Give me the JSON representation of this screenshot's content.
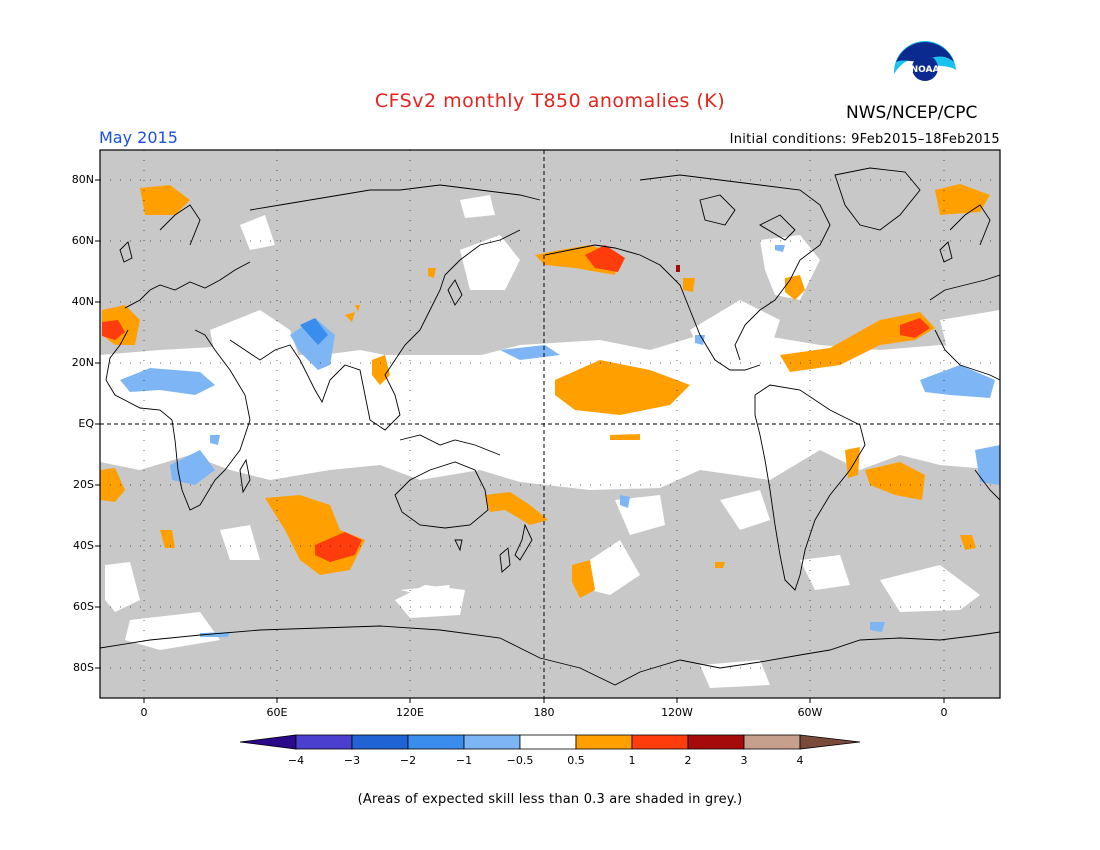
{
  "header": {
    "title": "CFSv2 monthly T850 anomalies (K)",
    "agency": "NWS/NCEP/CPC",
    "period": "May 2015",
    "initial_conditions": "Initial conditions: 9Feb2015–18Feb2015",
    "logo_text": "NOAA"
  },
  "map": {
    "lat_labels": [
      "80N",
      "60N",
      "40N",
      "20N",
      "EQ",
      "20S",
      "40S",
      "60S",
      "80S"
    ],
    "lon_labels": [
      "0",
      "60E",
      "120E",
      "180",
      "120W",
      "60W",
      "0"
    ],
    "projection": "cylindrical equidistant, centered on 180",
    "grey_color": "#c8c8c8"
  },
  "colorbar": {
    "tick_labels": [
      "−4",
      "−3",
      "−2",
      "−1",
      "−0.5",
      "0.5",
      "1",
      "2",
      "3",
      "4"
    ],
    "colors": [
      "#2a0a8a",
      "#4a3fcf",
      "#1f63d4",
      "#3b8ded",
      "#7eb6f5",
      "#ffffff",
      "#ffa000",
      "#ff3c0c",
      "#a50b0b",
      "#c79f8d",
      "#7a4a3a"
    ]
  },
  "footnote": "(Areas of expected skill less than 0.3 are shaded in grey.)"
}
